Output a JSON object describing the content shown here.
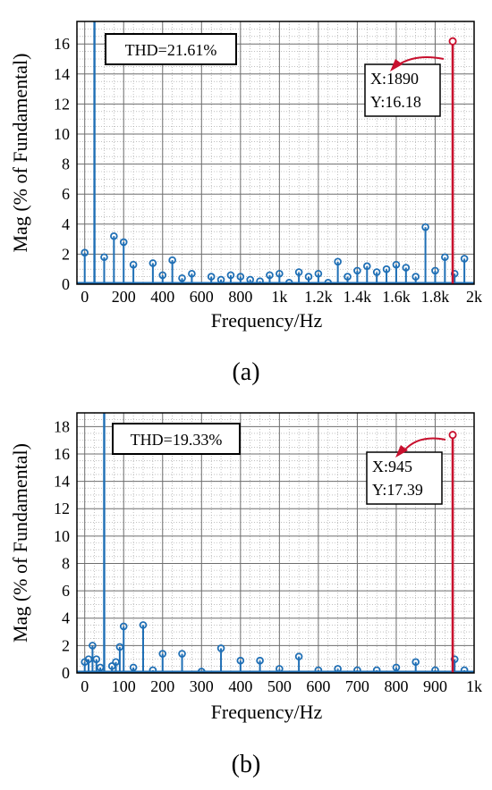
{
  "chart_data": [
    {
      "type": "stem",
      "panel_label": "(a)",
      "xlabel": "Frequency/Hz",
      "ylabel": "Mag (% of Fundamental)",
      "xlim": [
        -40,
        2000
      ],
      "ylim": [
        0,
        17.5
      ],
      "xticks": [
        0,
        200,
        400,
        600,
        800,
        1000,
        1200,
        1400,
        1600,
        1800,
        2000
      ],
      "xtick_labels": [
        "0",
        "200",
        "400",
        "600",
        "800",
        "1k",
        "1.2k",
        "1.4k",
        "1.6k",
        "1.8k",
        "2k"
      ],
      "yticks": [
        0,
        2,
        4,
        6,
        8,
        10,
        12,
        14,
        16
      ],
      "ytick_labels": [
        "0",
        "2",
        "4",
        "6",
        "8",
        "10",
        "12",
        "14",
        "16"
      ],
      "grid": true,
      "thd_text": "THD=21.61%",
      "fundamental": {
        "x": 50,
        "y": 100
      },
      "x": [
        0,
        100,
        150,
        200,
        250,
        350,
        400,
        450,
        500,
        550,
        650,
        700,
        750,
        800,
        850,
        900,
        950,
        1000,
        1050,
        1100,
        1150,
        1200,
        1250,
        1300,
        1350,
        1400,
        1450,
        1500,
        1550,
        1600,
        1650,
        1700,
        1750,
        1800,
        1850,
        1900,
        1950
      ],
      "y": [
        2.1,
        1.8,
        3.2,
        2.8,
        1.3,
        1.4,
        0.6,
        1.6,
        0.4,
        0.7,
        0.5,
        0.3,
        0.6,
        0.5,
        0.3,
        0.2,
        0.6,
        0.7,
        0.1,
        0.8,
        0.5,
        0.7,
        0.1,
        1.5,
        0.5,
        0.9,
        1.2,
        0.8,
        1.0,
        1.3,
        1.1,
        0.5,
        3.8,
        0.9,
        1.8,
        0.7,
        1.7
      ],
      "highlight": {
        "x": 1890,
        "y": 16.18,
        "label_x": "X:1890",
        "label_y": "Y:16.18",
        "color": "#c8102e"
      },
      "series_color": "#1f6fb5"
    },
    {
      "type": "stem",
      "panel_label": "(b)",
      "xlabel": "Frequency/Hz",
      "ylabel": "Mag (% of Fundamental)",
      "xlim": [
        -20,
        1000
      ],
      "ylim": [
        0,
        19
      ],
      "xticks": [
        0,
        100,
        200,
        300,
        400,
        500,
        600,
        700,
        800,
        900,
        1000
      ],
      "xtick_labels": [
        "0",
        "100",
        "200",
        "300",
        "400",
        "500",
        "600",
        "700",
        "800",
        "900",
        "1k"
      ],
      "yticks": [
        0,
        2,
        4,
        6,
        8,
        10,
        12,
        14,
        16,
        18
      ],
      "ytick_labels": [
        "0",
        "2",
        "4",
        "6",
        "8",
        "10",
        "12",
        "14",
        "16",
        "18"
      ],
      "grid": true,
      "thd_text": "THD=19.33%",
      "fundamental": {
        "x": 50,
        "y": 100
      },
      "x": [
        0,
        10,
        20,
        30,
        40,
        70,
        80,
        90,
        100,
        125,
        150,
        175,
        200,
        250,
        300,
        350,
        400,
        450,
        500,
        550,
        600,
        650,
        700,
        750,
        800,
        850,
        900,
        950,
        975
      ],
      "y": [
        0.8,
        1.0,
        2.0,
        1.0,
        0.4,
        0.5,
        0.8,
        1.9,
        3.4,
        0.4,
        3.5,
        0.2,
        1.4,
        1.4,
        0.1,
        1.8,
        0.9,
        0.9,
        0.3,
        1.2,
        0.2,
        0.3,
        0.2,
        0.2,
        0.4,
        0.8,
        0.2,
        1.0,
        0.2
      ],
      "highlight": {
        "x": 945,
        "y": 17.39,
        "label_x": "X:945",
        "label_y": "Y:17.39",
        "color": "#c8102e"
      },
      "series_color": "#1f6fb5"
    }
  ]
}
